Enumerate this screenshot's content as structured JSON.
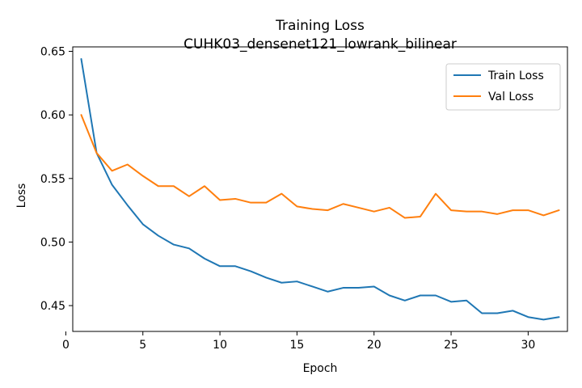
{
  "chart_data": {
    "type": "line",
    "title": "Training Loss",
    "subtitle": "CUHK03_densenet121_lowrank_bilinear",
    "xlabel": "Epoch",
    "ylabel": "Loss",
    "xlim": [
      0.45,
      32.55
    ],
    "ylim": [
      0.4297,
      0.6535
    ],
    "xticks": [
      0,
      5,
      10,
      15,
      20,
      25,
      30
    ],
    "yticks": [
      0.45,
      0.5,
      0.55,
      0.6,
      0.65
    ],
    "ytick_labels": [
      "0.45",
      "0.50",
      "0.55",
      "0.60",
      "0.65"
    ],
    "grid": false,
    "legend_position": "top-right",
    "x": [
      1,
      2,
      3,
      4,
      5,
      6,
      7,
      8,
      9,
      10,
      11,
      12,
      13,
      14,
      15,
      16,
      17,
      18,
      19,
      20,
      21,
      22,
      23,
      24,
      25,
      26,
      27,
      28,
      29,
      30,
      31,
      32
    ],
    "series": [
      {
        "name": "Train Loss",
        "color": "#1f77b4",
        "values": [
          0.644,
          0.57,
          0.545,
          0.529,
          0.514,
          0.505,
          0.498,
          0.495,
          0.487,
          0.481,
          0.481,
          0.477,
          0.472,
          0.468,
          0.469,
          0.465,
          0.461,
          0.464,
          0.464,
          0.465,
          0.458,
          0.454,
          0.458,
          0.458,
          0.453,
          0.454,
          0.444,
          0.444,
          0.446,
          0.441,
          0.439,
          0.441
        ]
      },
      {
        "name": "Val Loss",
        "color": "#ff7f0e",
        "values": [
          0.6,
          0.57,
          0.556,
          0.561,
          0.552,
          0.544,
          0.544,
          0.536,
          0.544,
          0.533,
          0.534,
          0.531,
          0.531,
          0.538,
          0.528,
          0.526,
          0.525,
          0.53,
          0.527,
          0.524,
          0.527,
          0.519,
          0.52,
          0.538,
          0.525,
          0.524,
          0.524,
          0.522,
          0.525,
          0.525,
          0.521,
          0.525
        ]
      }
    ]
  }
}
